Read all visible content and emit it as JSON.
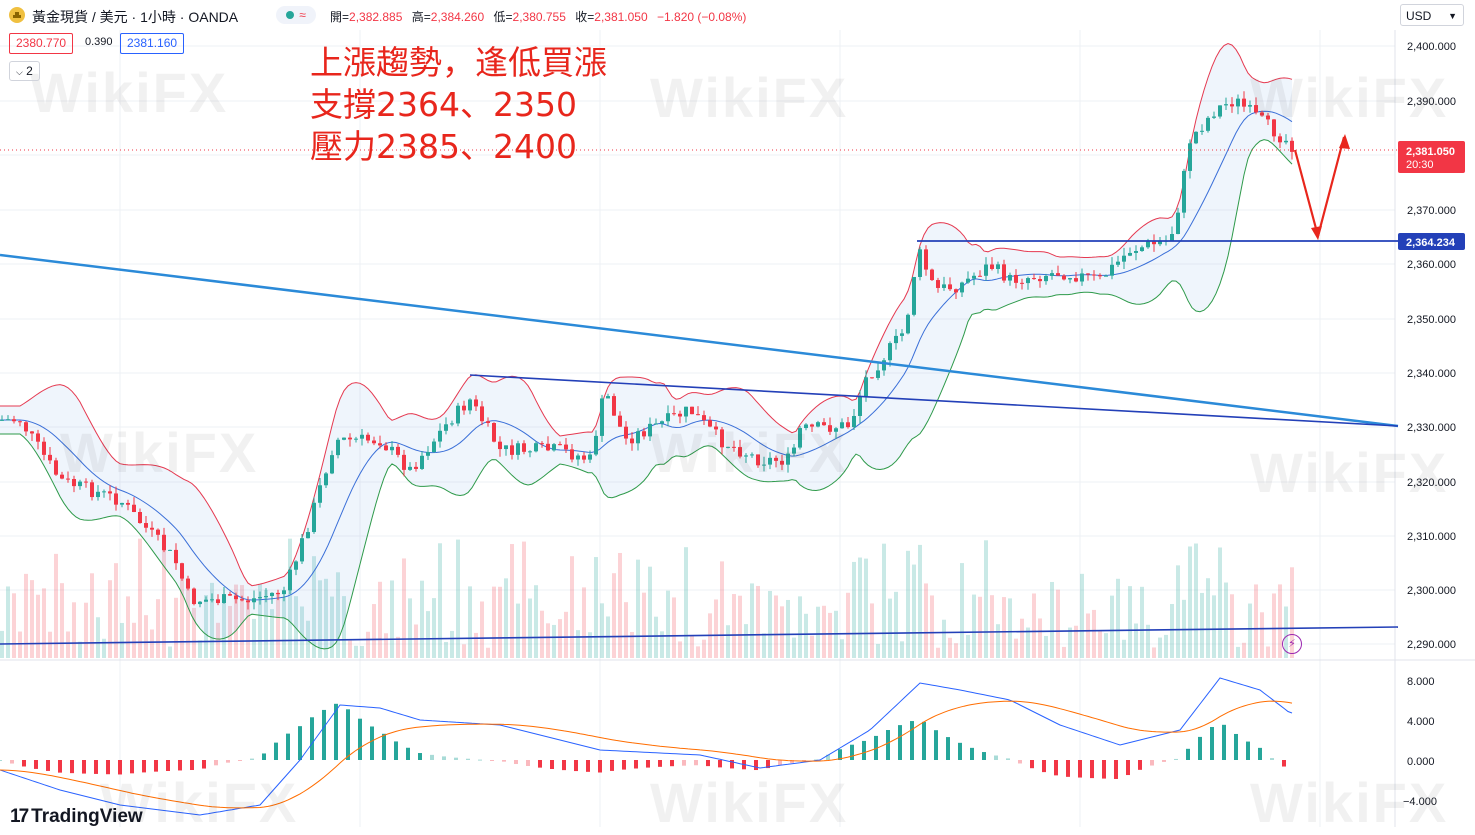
{
  "header": {
    "symbol_title": "黃金現貨 / 美元 · 1小時 · OANDA",
    "status_symbol": "≈",
    "ohlc_open_label": "開=",
    "ohlc_open": "2,382.885",
    "ohlc_high_label": "高=",
    "ohlc_high": "2,384.260",
    "ohlc_low_label": "低=",
    "ohlc_low": "2,380.755",
    "ohlc_close_label": "收=",
    "ohlc_close": "2,381.050",
    "ohlc_change": "−1.820 (−0.08%)",
    "bid": "2380.770",
    "spread": "0.390",
    "ask": "2381.160",
    "indicators_count": "2",
    "currency": "USD"
  },
  "annotation": {
    "line1": "上漲趨勢，逢低買漲",
    "line2": "支撐2364、2350",
    "line3": "壓力2385、2400"
  },
  "price_axis": {
    "ticks": [
      "2,400.000",
      "2,390.000",
      "2,370.000",
      "2,360.000",
      "2,350.000",
      "2,340.000",
      "2,330.000",
      "2,320.000",
      "2,310.000",
      "2,300.000",
      "2,290.000"
    ],
    "current_price": "2,381.050",
    "countdown": "20:30",
    "support_label": "2,364.234"
  },
  "macd_axis": {
    "ticks": [
      "8.000",
      "4.000",
      "0.000",
      "−4.000"
    ]
  },
  "watermark": "WikiFX",
  "brand": "TradingView",
  "colors": {
    "up": "#26a69a",
    "down": "#f23645",
    "bb_upper": "#e53950",
    "bb_lower": "#2e9a4a",
    "bb_basis": "#3a6fd8",
    "trendline": "#2b8ad8",
    "support": "#2340b8"
  }
}
